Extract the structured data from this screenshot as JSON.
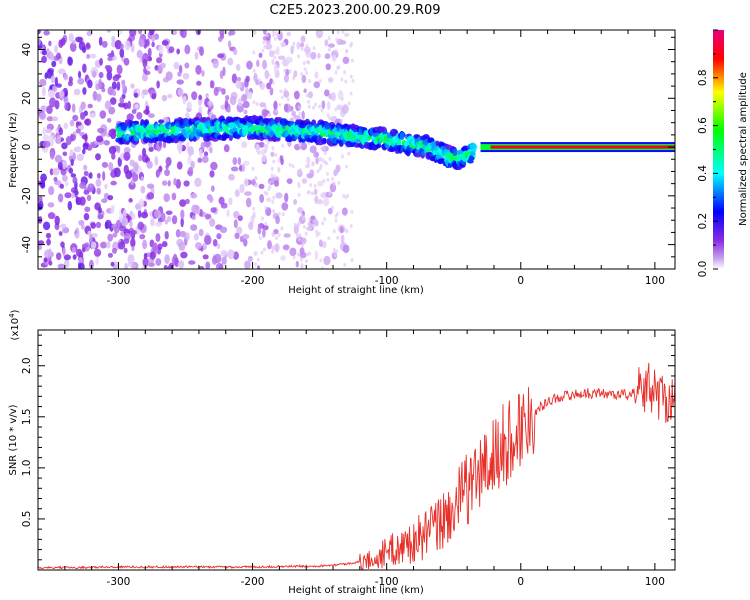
{
  "title": "C2E5.2023.200.00.29.R09",
  "chart_data": [
    {
      "type": "heatmap",
      "title": "C2E5.2023.200.00.29.R09",
      "xlabel": "Height of straight line (km)",
      "ylabel": "Frequency (Hz)",
      "xlim": [
        -360,
        115
      ],
      "ylim": [
        -50,
        48
      ],
      "x_ticks": [
        -300,
        -200,
        -100,
        0,
        100
      ],
      "y_ticks": [
        -40,
        -20,
        0,
        20,
        40
      ],
      "grid": false,
      "colorbar": {
        "label": "Normalized spectral amplitude",
        "range": [
          0.0,
          1.0
        ],
        "ticks": [
          0.0,
          0.2,
          0.4,
          0.6,
          0.8
        ],
        "colors": [
          "#ffffff",
          "#8a2be2",
          "#0000ff",
          "#00ffff",
          "#00ff00",
          "#ffff00",
          "#ff0000",
          "#e6007e"
        ]
      },
      "ridge": {
        "description_points": [
          {
            "x": -300,
            "y": 6
          },
          {
            "x": -250,
            "y": 7
          },
          {
            "x": -200,
            "y": 8
          },
          {
            "x": -150,
            "y": 6
          },
          {
            "x": -100,
            "y": 3
          },
          {
            "x": -70,
            "y": 0
          },
          {
            "x": -50,
            "y": -5
          },
          {
            "x": -40,
            "y": -3
          },
          {
            "x": -30,
            "y": 0
          },
          {
            "x": 0,
            "y": 0
          },
          {
            "x": 115,
            "y": 0
          }
        ]
      }
    },
    {
      "type": "line",
      "xlabel": "Height of straight line (km)",
      "ylabel": "SNR (10 * v/v)",
      "y_multiplier": "(x10",
      "y_multiplier_exp": "4",
      "y_multiplier_close": ")",
      "xlim": [
        -360,
        115
      ],
      "ylim": [
        0,
        2.35
      ],
      "x_ticks": [
        -300,
        -200,
        -100,
        0,
        100
      ],
      "y_ticks": [
        0.5,
        1.0,
        1.5,
        2.0
      ],
      "y_tick_labels": [
        "0.5",
        "1.0",
        "1.5",
        "2.0"
      ],
      "grid": false,
      "series": [
        {
          "color": "#e8302a",
          "x": [
            -360,
            -300,
            -250,
            -200,
            -150,
            -130,
            -110,
            -100,
            -90,
            -80,
            -70,
            -60,
            -50,
            -40,
            -30,
            -20,
            -10,
            0,
            10,
            20,
            30,
            40,
            50,
            60,
            70,
            80,
            90,
            95,
            100,
            105,
            110,
            115
          ],
          "y": [
            0.02,
            0.03,
            0.03,
            0.03,
            0.04,
            0.06,
            0.1,
            0.18,
            0.22,
            0.28,
            0.35,
            0.45,
            0.6,
            0.8,
            0.95,
            1.1,
            1.25,
            1.4,
            1.55,
            1.65,
            1.7,
            1.72,
            1.73,
            1.73,
            1.72,
            1.72,
            1.75,
            1.8,
            1.75,
            1.7,
            1.68,
            1.68
          ]
        }
      ]
    }
  ]
}
